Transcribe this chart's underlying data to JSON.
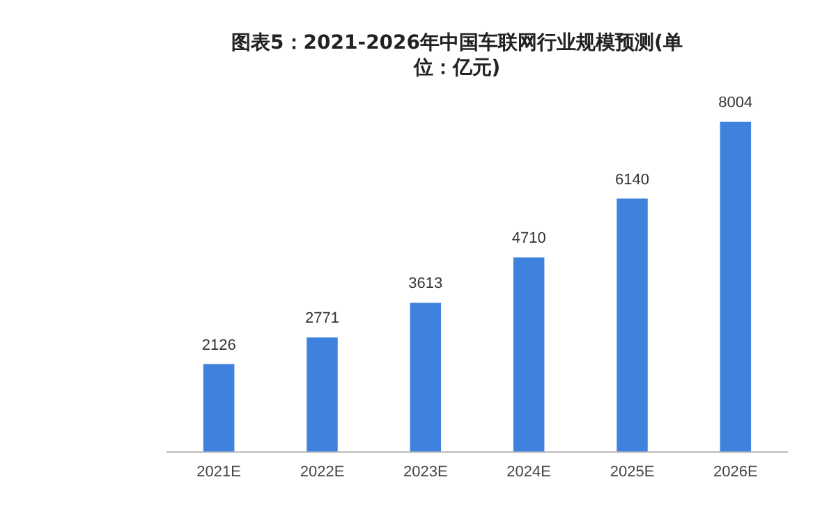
{
  "chart_data": {
    "type": "bar",
    "title": "图表5：2021-2026年中国车联网行业规模预测(单位：亿元)",
    "categories": [
      "2021E",
      "2022E",
      "2023E",
      "2024E",
      "2025E",
      "2026E"
    ],
    "values": [
      2126,
      2771,
      3613,
      4710,
      6140,
      8004
    ],
    "color": "#3e82de",
    "data_labels": true,
    "grid": false,
    "legend": false
  }
}
